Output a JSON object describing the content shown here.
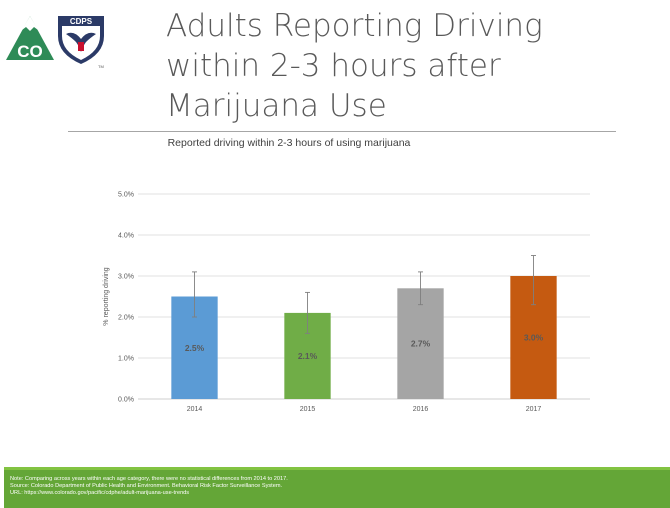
{
  "header": {
    "title_lines": [
      "Adults Reporting Driving",
      "within 2-3 hours after",
      "Marijuana Use"
    ],
    "logo": {
      "text_co": "CO",
      "text_agency": "CDPS",
      "text_tm": "TM",
      "colors": {
        "green": "#2e8b57",
        "navy": "#2b3a67"
      }
    }
  },
  "chart_data": {
    "type": "bar",
    "title": "Reported driving within 2-3 hours of using marijuana",
    "ylabel": "% reporting driving",
    "xlabel": "",
    "categories": [
      "2014",
      "2015",
      "2016",
      "2017"
    ],
    "values": [
      2.5,
      2.1,
      2.7,
      3.0
    ],
    "error_low": [
      2.0,
      1.6,
      2.3,
      2.3
    ],
    "error_high": [
      3.1,
      2.6,
      3.1,
      3.5
    ],
    "data_labels": [
      "2.5%",
      "2.1%",
      "2.7%",
      "3.0%"
    ],
    "colors": [
      "#5b9bd5",
      "#70ad47",
      "#a5a5a5",
      "#c55a11"
    ],
    "ylim": [
      0,
      5
    ],
    "yticks": [
      0,
      1,
      2,
      3,
      4,
      5
    ],
    "ytick_labels": [
      "0.0%",
      "1.0%",
      "2.0%",
      "3.0%",
      "4.0%",
      "5.0%"
    ],
    "grid": true,
    "legend": "none"
  },
  "footer": {
    "note": "Note: Comparing across years within each age category, there were no statistical differences from 2014 to 2017.",
    "source": "Source: Colorado Department of Public Health and Environment. Behavioral Risk Factor Surveillance System.",
    "url": "URL: https://www.colorado.gov/pacific/cdphe/adult-marijuana-use-trends",
    "colors": {
      "bar": "#64a637",
      "accent": "#82c341"
    }
  }
}
